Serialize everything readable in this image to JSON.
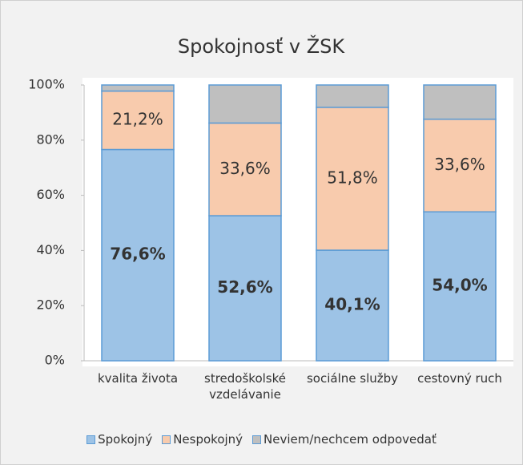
{
  "chart_data": {
    "type": "stacked_bar",
    "title": "Spokojnosť v ŽSK",
    "categories": [
      "kvalita života",
      "stredoškolské vzdelávanie",
      "sociálne služby",
      "cestovný ruch"
    ],
    "series": [
      {
        "name": "Spokojný",
        "color": "#9dc3e6",
        "values": [
          76.6,
          52.6,
          40.1,
          54.0
        ],
        "value_labels": [
          "76,6%",
          "52,6%",
          "40,1%",
          "54,0%"
        ]
      },
      {
        "name": "Nespokojný",
        "color": "#f8cbad",
        "values": [
          21.2,
          33.6,
          51.8,
          33.6
        ],
        "value_labels": [
          "21,2%",
          "33,6%",
          "51,8%",
          "33,6%"
        ]
      },
      {
        "name": "Neviem/nechcem odpovedať",
        "color": "#bfbfbf",
        "values": [
          2.2,
          13.8,
          8.1,
          12.4
        ]
      }
    ],
    "ylim": [
      0,
      100
    ],
    "yticks": [
      {
        "value": 0,
        "label": "0%"
      },
      {
        "value": 20,
        "label": "20%"
      },
      {
        "value": 40,
        "label": "40%"
      },
      {
        "value": 60,
        "label": "60%"
      },
      {
        "value": 80,
        "label": "80%"
      },
      {
        "value": 100,
        "label": "100%"
      }
    ],
    "legend": "bottom"
  }
}
